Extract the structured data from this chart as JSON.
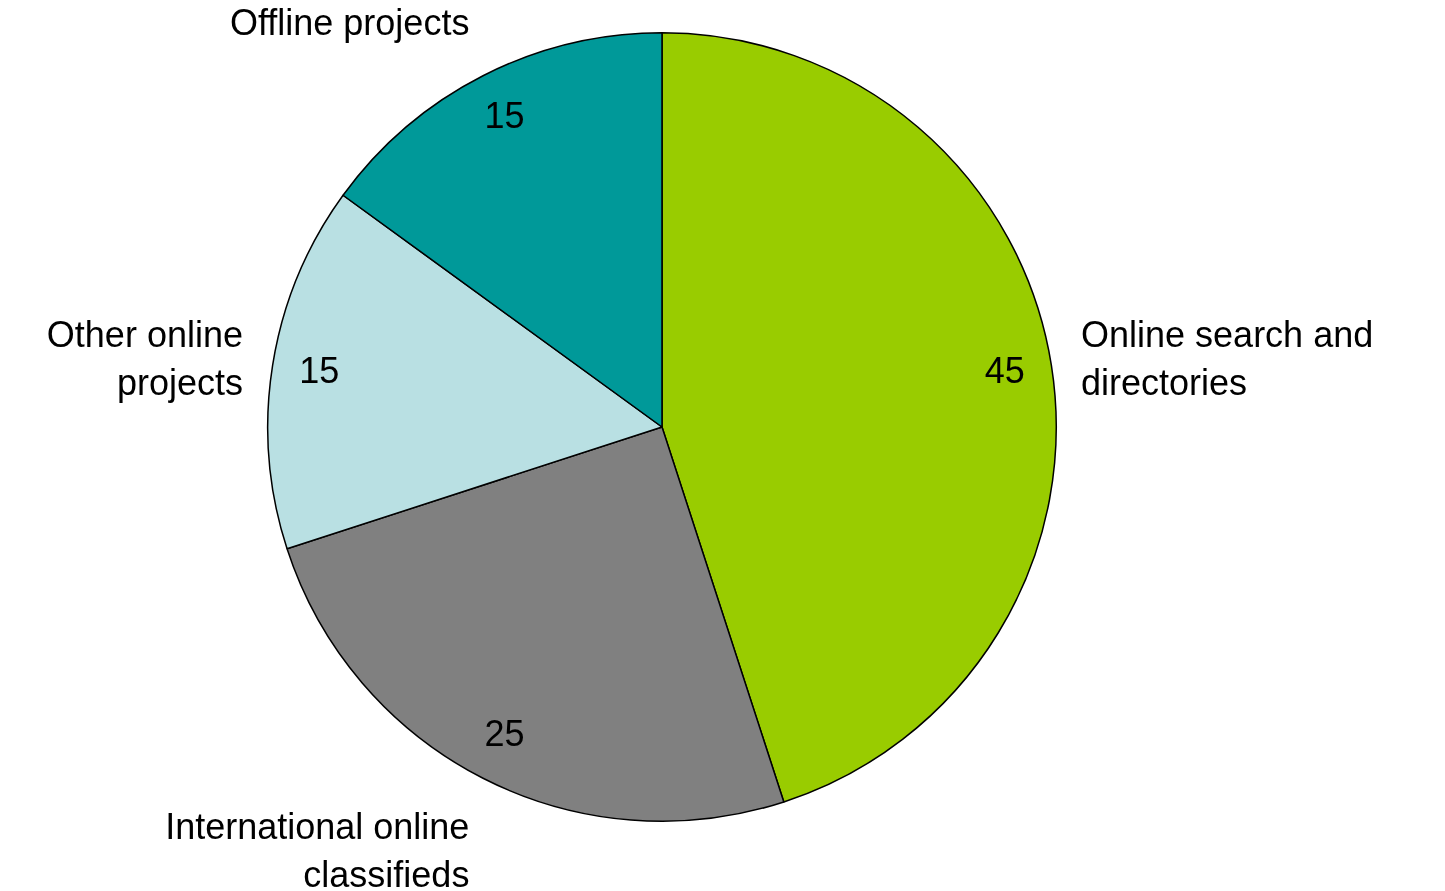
{
  "chart_data": {
    "type": "pie",
    "categories": [
      "Online search and directories",
      "International online classifieds",
      "Other online projects",
      "Offline projects"
    ],
    "values": [
      45,
      25,
      15,
      15
    ],
    "colors": [
      "#99cc00",
      "#808080",
      "#b9e0e3",
      "#009999"
    ],
    "data_labels": true,
    "legend": false
  }
}
